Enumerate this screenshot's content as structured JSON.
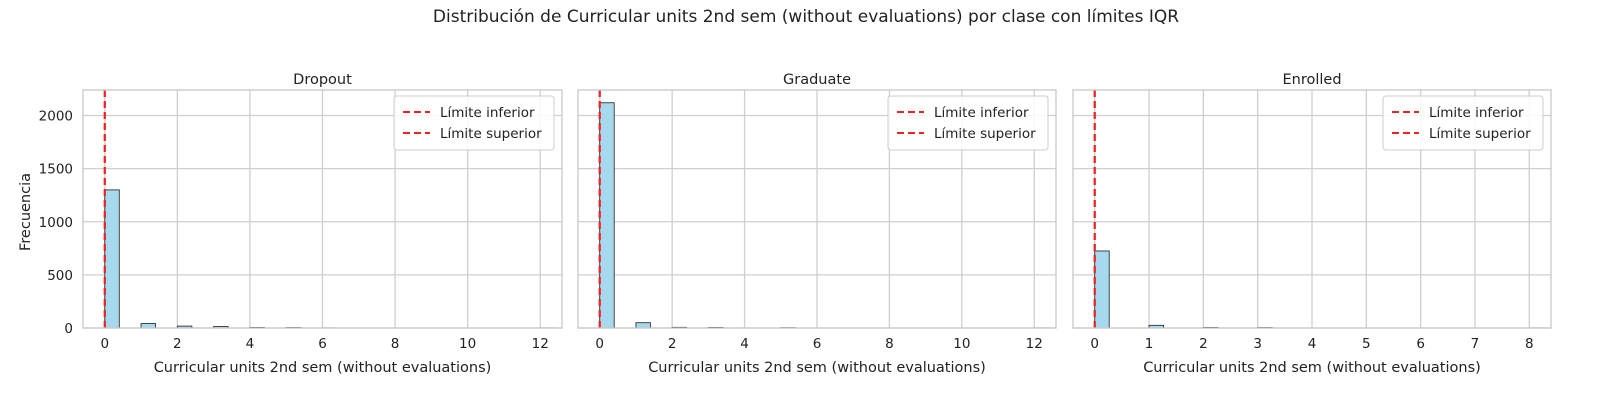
{
  "chart_data": {
    "type": "bar",
    "title": "Distribución de Curricular units 2nd sem (without evaluations) por clase con límites IQR",
    "ylabel": "Frecuencia",
    "bar_color": "#a6d8ee",
    "line_color": "#ee2222",
    "grid": true,
    "legend_placement": "top-right",
    "legend": [
      "Límite inferior",
      "Límite superior"
    ],
    "ylim": [
      0,
      2240
    ],
    "yticks": [
      0,
      500,
      1000,
      1500,
      2000
    ],
    "panels": [
      {
        "title": "Dropout",
        "xlabel": "Curricular units 2nd sem (without evaluations)",
        "xlim": [
          -0.6,
          12.6
        ],
        "xticks": [
          0,
          2,
          4,
          6,
          8,
          10,
          12
        ],
        "bin_width": 0.4,
        "bins": [
          {
            "x": 0,
            "value": 1300
          },
          {
            "x": 1,
            "value": 42
          },
          {
            "x": 2,
            "value": 18
          },
          {
            "x": 3,
            "value": 14
          },
          {
            "x": 4,
            "value": 5
          },
          {
            "x": 5,
            "value": 4
          },
          {
            "x": 6,
            "value": 1
          },
          {
            "x": 12,
            "value": 1
          }
        ],
        "iqr_lower": 0,
        "iqr_upper": 0
      },
      {
        "title": "Graduate",
        "xlabel": "Curricular units 2nd sem (without evaluations)",
        "xlim": [
          -0.6,
          12.6
        ],
        "xticks": [
          0,
          2,
          4,
          6,
          8,
          10,
          12
        ],
        "bin_width": 0.4,
        "bins": [
          {
            "x": 0,
            "value": 2120
          },
          {
            "x": 1,
            "value": 50
          },
          {
            "x": 2,
            "value": 6
          },
          {
            "x": 3,
            "value": 5
          },
          {
            "x": 5,
            "value": 3
          },
          {
            "x": 12,
            "value": 1
          }
        ],
        "iqr_lower": 0,
        "iqr_upper": 0
      },
      {
        "title": "Enrolled",
        "xlabel": "Curricular units 2nd sem (without evaluations)",
        "xlim": [
          -0.4,
          8.4
        ],
        "xticks": [
          0,
          1,
          2,
          3,
          4,
          5,
          6,
          7,
          8
        ],
        "bin_width": 0.267,
        "bins": [
          {
            "x": 0,
            "value": 725
          },
          {
            "x": 1,
            "value": 25
          },
          {
            "x": 2,
            "value": 5
          },
          {
            "x": 3,
            "value": 4
          },
          {
            "x": 8,
            "value": 1
          }
        ],
        "iqr_lower": 0,
        "iqr_upper": 0
      }
    ]
  }
}
